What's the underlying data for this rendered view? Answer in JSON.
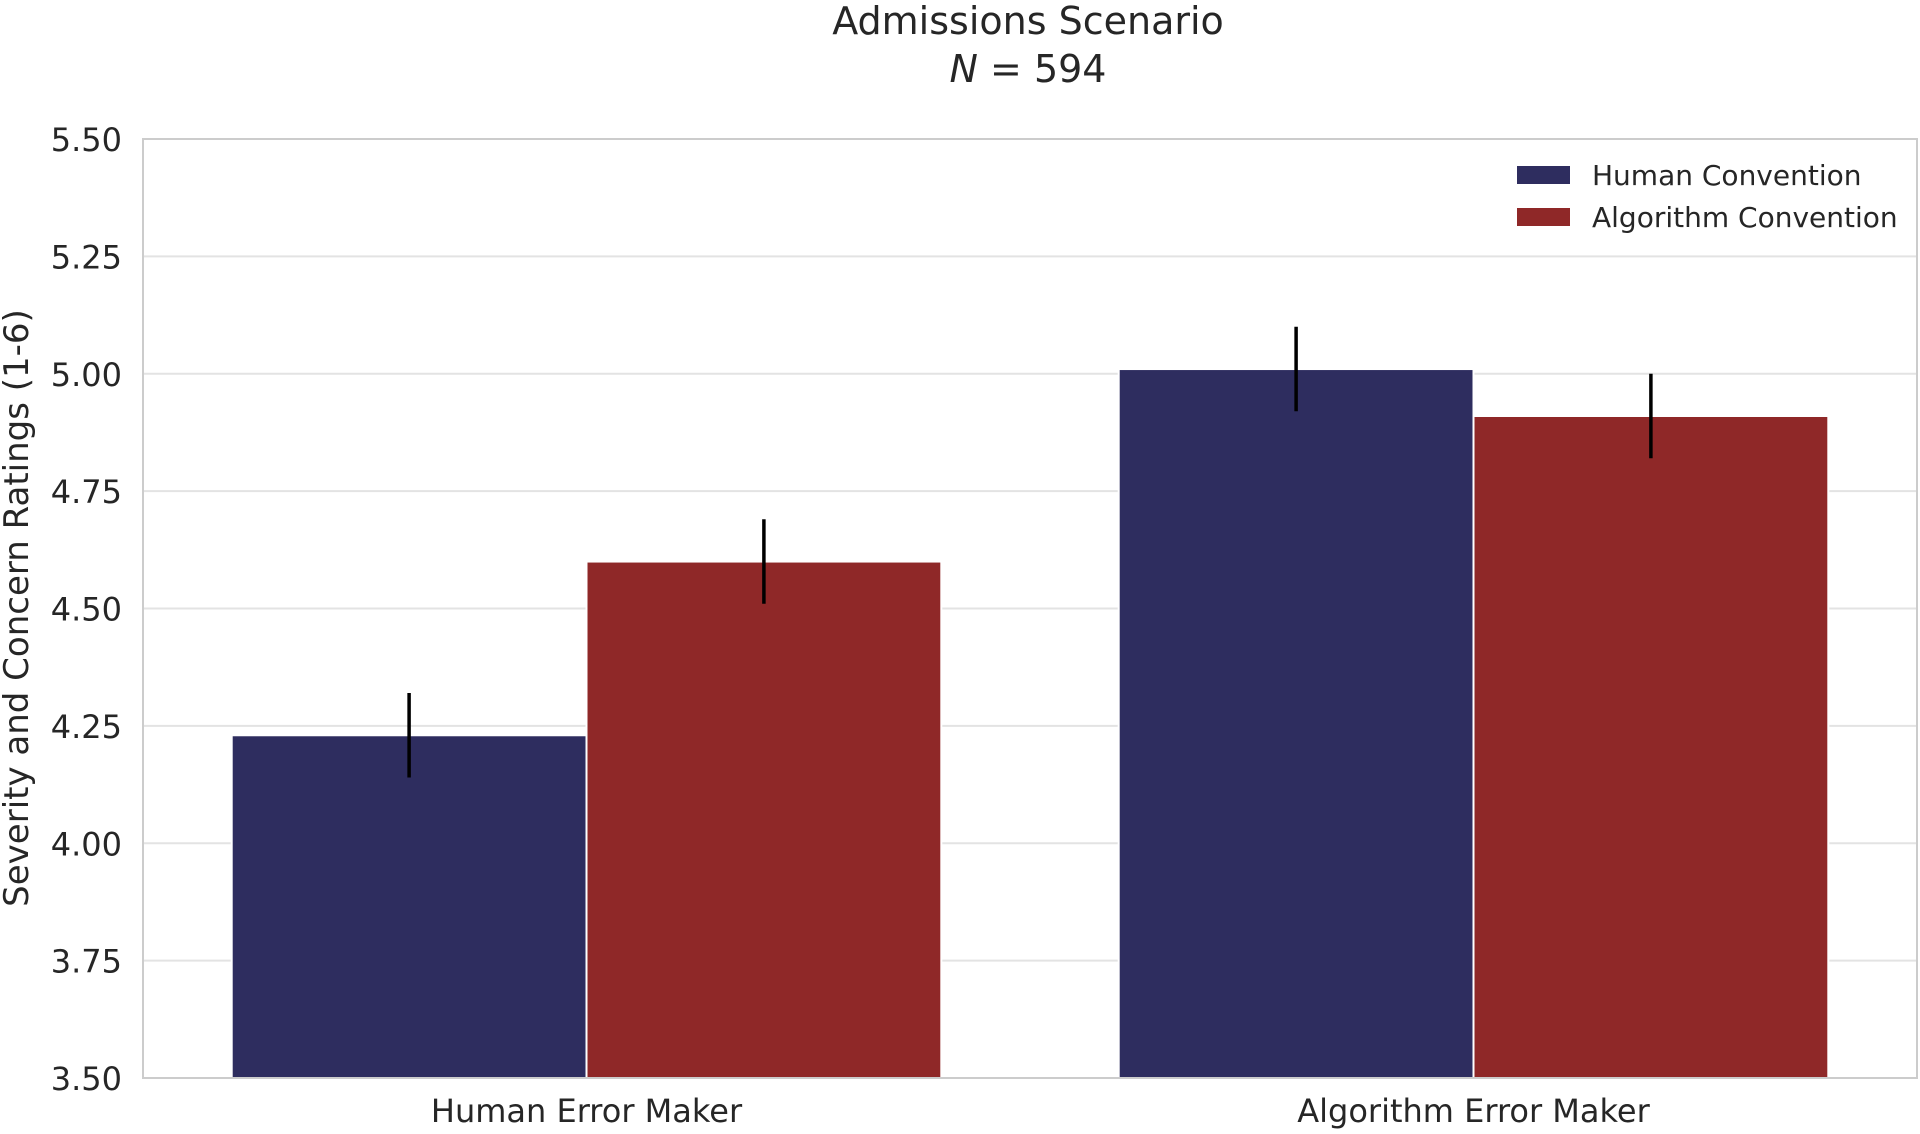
{
  "chart_data": {
    "type": "bar",
    "title": "Admissions Scenario",
    "subtitle_italic": "N",
    "subtitle_rest": " = 594",
    "xlabel": "",
    "ylabel": "Severity and Concern Ratings (1-6)",
    "ylim": [
      3.5,
      5.5
    ],
    "yticks": [
      "3.50",
      "3.75",
      "4.00",
      "4.25",
      "4.50",
      "4.75",
      "5.00",
      "5.25",
      "5.50"
    ],
    "categories": [
      "Human Error Maker",
      "Algorithm Error Maker"
    ],
    "series": [
      {
        "name": "Human Convention",
        "color": "#2e2d5f",
        "values": [
          4.23,
          5.01
        ],
        "error_low": [
          4.14,
          4.92
        ],
        "error_high": [
          4.32,
          5.1
        ]
      },
      {
        "name": "Algorithm Convention",
        "color": "#8f2828",
        "values": [
          4.6,
          4.91
        ],
        "error_low": [
          4.51,
          4.82
        ],
        "error_high": [
          4.69,
          5.0
        ]
      }
    ],
    "grid": true,
    "legend_position": "top-right"
  }
}
